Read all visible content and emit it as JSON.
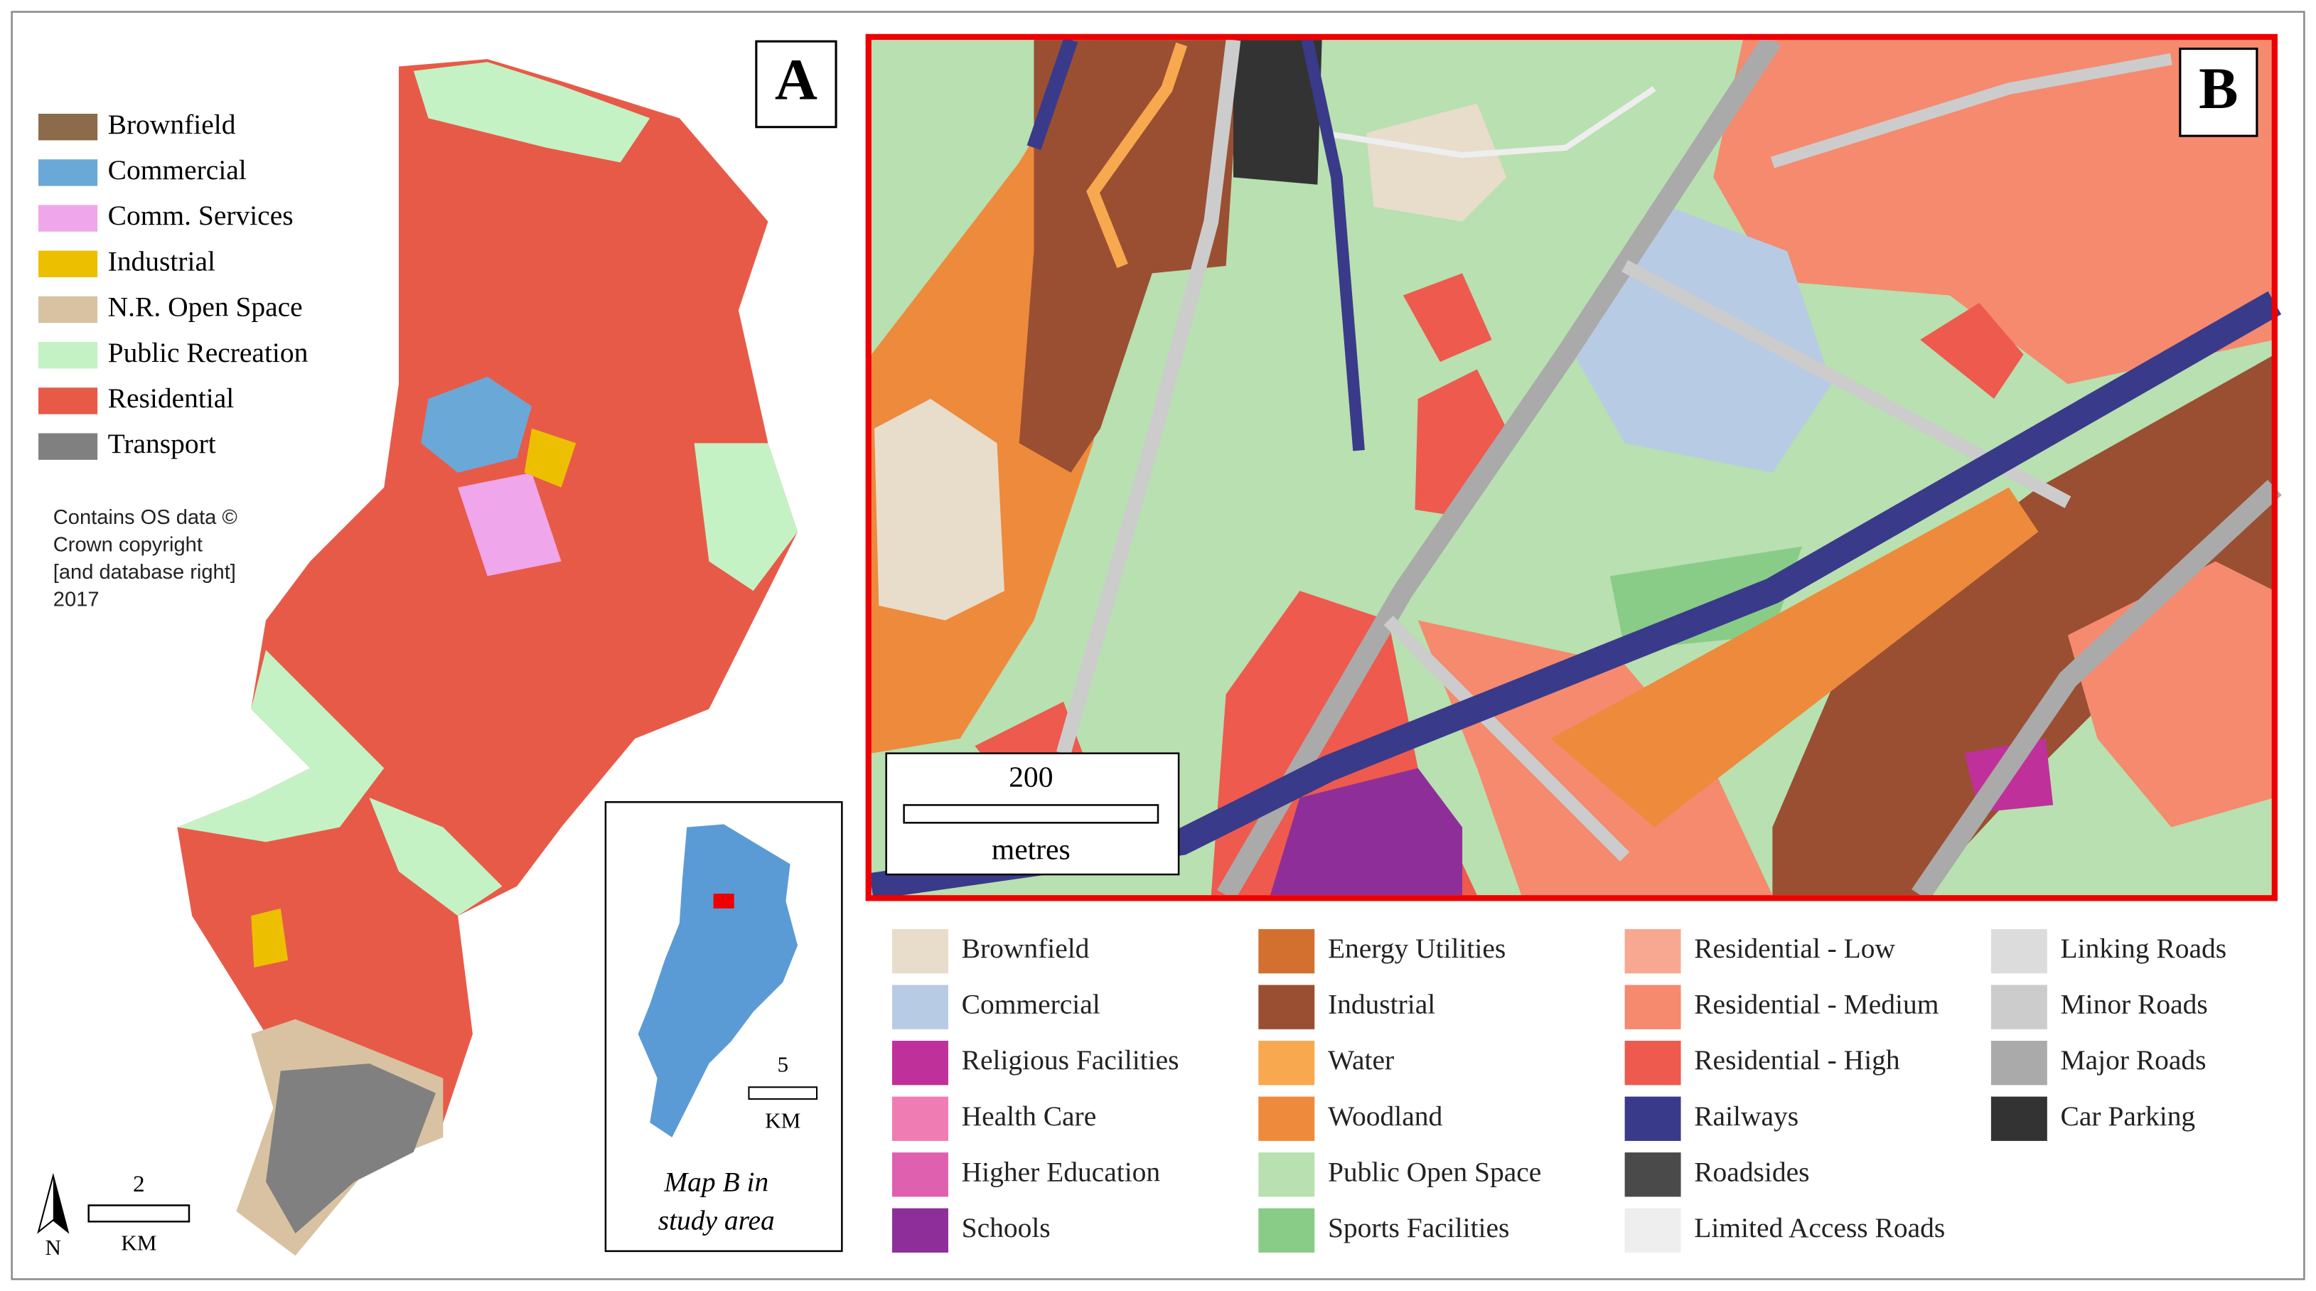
{
  "map_a": {
    "label": "A",
    "legend": [
      {
        "label": "Brownfield",
        "color": "#8b6b4a"
      },
      {
        "label": "Commercial",
        "color": "#6aa8d8"
      },
      {
        "label": "Comm. Services",
        "color": "#f0a6ea"
      },
      {
        "label": "Industrial",
        "color": "#ecc000"
      },
      {
        "label": "N.R. Open Space",
        "color": "#d8c2a2"
      },
      {
        "label": "Public Recreation",
        "color": "#c4f2c4"
      },
      {
        "label": "Residential",
        "color": "#e85a48"
      },
      {
        "label": "Transport",
        "color": "#808080"
      }
    ],
    "credit": [
      "Contains OS data ©",
      "Crown copyright",
      "[and database right]",
      "2017"
    ],
    "scale_bar": {
      "value": 2,
      "unit": "KM"
    },
    "north": "N"
  },
  "inset": {
    "scale_bar": {
      "value": 5,
      "unit": "KM"
    },
    "caption": [
      "Map B in",
      "study area"
    ]
  },
  "map_b": {
    "label": "B",
    "scale_bar": {
      "value": 200,
      "unit": "metres"
    },
    "legend": [
      {
        "label": "Brownfield",
        "color": "#e8dccb"
      },
      {
        "label": "Commercial",
        "color": "#b8cbe4"
      },
      {
        "label": "Religious Facilities",
        "color": "#c0309a"
      },
      {
        "label": "Health Care",
        "color": "#f07cb4"
      },
      {
        "label": "Higher Education",
        "color": "#e060b0"
      },
      {
        "label": "Schools",
        "color": "#8e2f99"
      },
      {
        "label": "Energy Utilities",
        "color": "#d4702f"
      },
      {
        "label": "Industrial",
        "color": "#9a4f32"
      },
      {
        "label": "Water",
        "color": "#f8a84e"
      },
      {
        "label": "Woodland",
        "color": "#ee8a3c"
      },
      {
        "label": "Public Open Space",
        "color": "#b8e0b0"
      },
      {
        "label": "Sports Facilities",
        "color": "#88cc88"
      },
      {
        "label": "Residential - Low",
        "color": "#f8a890"
      },
      {
        "label": "Residential - Medium",
        "color": "#f58a6e"
      },
      {
        "label": "Residential - High",
        "color": "#ee5a4e"
      },
      {
        "label": "Railways",
        "color": "#3a3a8a"
      },
      {
        "label": "Roadsides",
        "color": "#4a4a4a"
      },
      {
        "label": "Limited Access Roads",
        "color": "#eeeeee"
      },
      {
        "label": "Linking Roads",
        "color": "#dcdcdc"
      },
      {
        "label": "Minor Roads",
        "color": "#cccccc"
      },
      {
        "label": "Major Roads",
        "color": "#aaaaaa"
      },
      {
        "label": "Car Parking",
        "color": "#333333"
      }
    ]
  }
}
